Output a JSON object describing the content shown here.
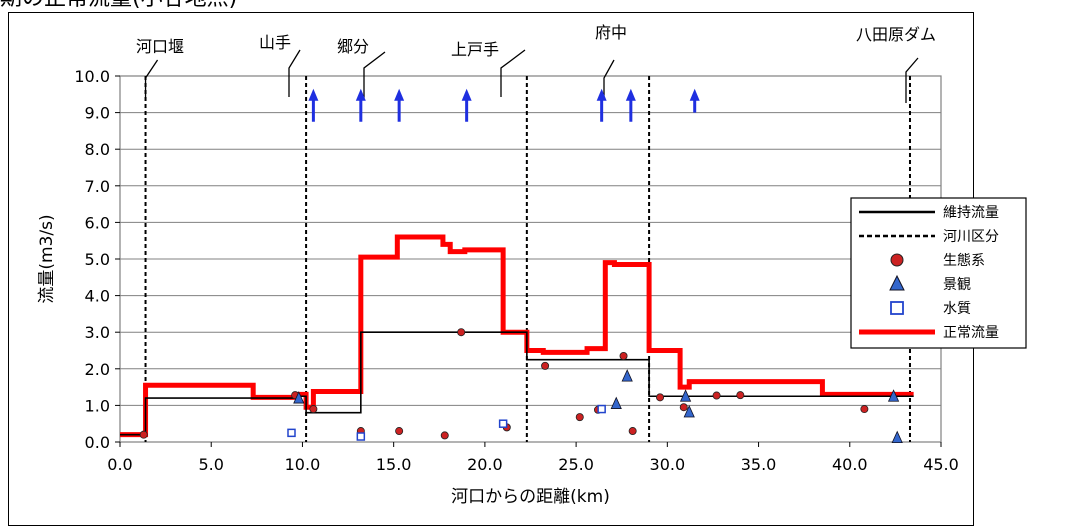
{
  "header": {
    "cropped_title": "期の正常流量(小谷地点)"
  },
  "chart_data": {
    "type": "line",
    "xlabel": "河口からの距離(km)",
    "ylabel": "流量(m3/s)",
    "xlim": [
      0,
      45
    ],
    "ylim": [
      0,
      10
    ],
    "xticks": [
      0,
      5,
      10,
      15,
      20,
      25,
      30,
      35,
      40,
      45
    ],
    "xtick_labels": [
      "0.0",
      "5.0",
      "10.0",
      "15.0",
      "20.0",
      "25.0",
      "30.0",
      "35.0",
      "40.0",
      "45.0"
    ],
    "yticks": [
      0,
      1,
      2,
      3,
      4,
      5,
      6,
      7,
      8,
      9,
      10
    ],
    "ytick_labels": [
      "0.0",
      "1.0",
      "2.0",
      "3.0",
      "4.0",
      "5.0",
      "6.0",
      "7.0",
      "8.0",
      "9.0",
      "10.0"
    ],
    "grid": "horizontal",
    "legend_position": "right",
    "legend": [
      {
        "key": "iji",
        "label": "維持流量",
        "style": "line",
        "color": "#000000"
      },
      {
        "key": "kasen",
        "label": "河川区分",
        "style": "dashed",
        "color": "#000000"
      },
      {
        "key": "seitai",
        "label": "生態系",
        "style": "marker-circle",
        "color": "#cc2222"
      },
      {
        "key": "keikan",
        "label": "景観",
        "style": "marker-triangle",
        "color": "#3366cc"
      },
      {
        "key": "suishitsu",
        "label": "水質",
        "style": "marker-square",
        "color": "#2244cc"
      },
      {
        "key": "seijo",
        "label": "正常流量",
        "style": "thick-line",
        "color": "#ff0000"
      }
    ],
    "series": [
      {
        "name": "正常流量",
        "color": "#ff0000",
        "x": [
          0,
          1.4,
          1.4,
          7.3,
          7.3,
          9.7,
          9.7,
          10.2,
          10.2,
          10.6,
          10.6,
          13.2,
          13.2,
          15.2,
          15.2,
          16.3,
          16.3,
          17.7,
          17.7,
          18.1,
          18.1,
          18.9,
          18.9,
          20.3,
          20.3,
          21.0,
          21.0,
          22.3,
          22.3,
          23.2,
          23.2,
          25.6,
          25.6,
          26.6,
          26.6,
          27.1,
          27.1,
          29.0,
          29.0,
          30.7,
          30.7,
          31.2,
          31.2,
          38.5,
          38.5,
          43.5
        ],
        "y": [
          0.2,
          0.2,
          1.55,
          1.55,
          1.22,
          1.22,
          1.3,
          1.3,
          0.95,
          0.95,
          1.38,
          1.38,
          5.05,
          5.05,
          5.6,
          5.6,
          5.6,
          5.6,
          5.4,
          5.4,
          5.2,
          5.2,
          5.25,
          5.25,
          5.25,
          5.25,
          3.0,
          3.0,
          2.5,
          2.5,
          2.45,
          2.45,
          2.55,
          2.55,
          4.9,
          4.9,
          4.85,
          4.85,
          2.5,
          2.5,
          1.5,
          1.5,
          1.65,
          1.65,
          1.3,
          1.3
        ]
      },
      {
        "name": "維持流量",
        "color": "#000000",
        "x": [
          0,
          1.4,
          1.4,
          9.7,
          9.7,
          10.2,
          10.2,
          13.2,
          13.2,
          22.3,
          22.3,
          29.0,
          29.0,
          43.5
        ],
        "y": [
          0.2,
          0.2,
          1.2,
          1.2,
          1.25,
          1.25,
          0.8,
          0.8,
          3.0,
          3.0,
          2.25,
          2.25,
          1.25,
          1.25
        ]
      }
    ],
    "boundaries_km": [
      1.4,
      10.2,
      22.3,
      29.0,
      43.3
    ],
    "scatter": {
      "seitai": [
        [
          1.3,
          0.2
        ],
        [
          9.6,
          1.28
        ],
        [
          10.6,
          0.9
        ],
        [
          13.2,
          0.3
        ],
        [
          15.3,
          0.3
        ],
        [
          17.8,
          0.18
        ],
        [
          18.7,
          3.0
        ],
        [
          21.2,
          0.4
        ],
        [
          23.3,
          2.08
        ],
        [
          25.2,
          0.68
        ],
        [
          26.2,
          0.88
        ],
        [
          27.6,
          2.35
        ],
        [
          28.1,
          0.3
        ],
        [
          29.6,
          1.22
        ],
        [
          30.9,
          0.95
        ],
        [
          32.7,
          1.27
        ],
        [
          34.0,
          1.28
        ],
        [
          40.8,
          0.9
        ]
      ],
      "keikan": [
        [
          9.8,
          1.2
        ],
        [
          27.2,
          1.05
        ],
        [
          27.8,
          1.8
        ],
        [
          31.0,
          1.25
        ],
        [
          31.2,
          0.82
        ],
        [
          42.4,
          1.25
        ],
        [
          42.6,
          0.12
        ]
      ],
      "suishitsu": [
        [
          9.4,
          0.25
        ],
        [
          13.2,
          0.15
        ],
        [
          21.0,
          0.5
        ],
        [
          26.4,
          0.9
        ]
      ]
    },
    "arrows_x": [
      10.6,
      13.2,
      15.3,
      19.0,
      26.4,
      28.0,
      31.5
    ],
    "arrows_y_bottom": [
      8.75,
      8.75,
      8.75,
      8.75,
      8.75,
      8.75,
      9.0
    ],
    "section_labels": [
      {
        "text": "河口堰",
        "x_km": 1.4
      },
      {
        "text": "山手",
        "x_km": 9.4
      },
      {
        "text": "郷分",
        "x_km": 13.2
      },
      {
        "text": "上戸手",
        "x_km": 20.8
      },
      {
        "text": "府中",
        "x_km": 26.6
      },
      {
        "text": "八田原ダム",
        "x_km": 43.3
      }
    ]
  }
}
